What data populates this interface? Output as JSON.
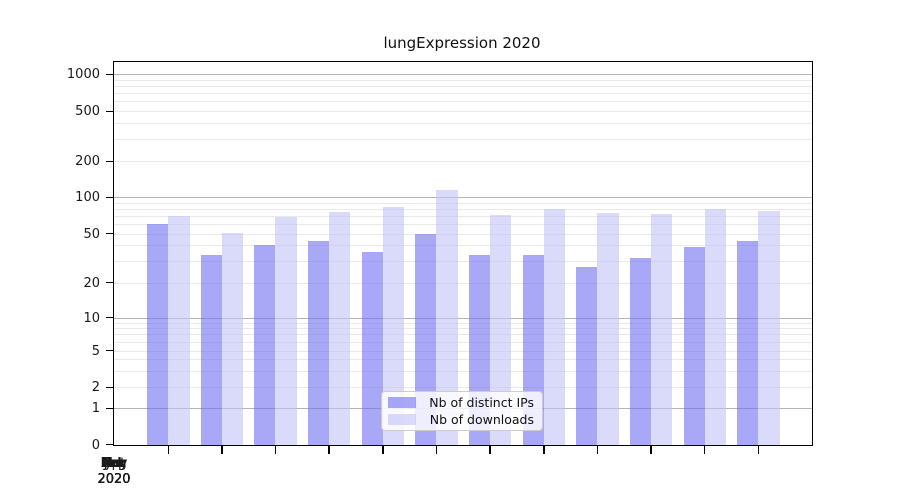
{
  "title": "lungExpression 2020",
  "chart_data": {
    "type": "bar",
    "title": "lungExpression 2020",
    "categories": [
      "Jan 2020",
      "Feb 2020",
      "Mar 2020",
      "Apr 2020",
      "May 2020",
      "Jun 2020",
      "Jul 2020",
      "Aug 2020",
      "Sep 2020",
      "Oct 2020",
      "Nov 2020",
      "Dec 2020"
    ],
    "series": [
      {
        "name": "Nb of distinct IPs",
        "color": "rgba(110,110,240,0.6)",
        "values": [
          60,
          34,
          41,
          44,
          36,
          50,
          34,
          34,
          27,
          32,
          39,
          44
        ]
      },
      {
        "name": "Nb of downloads",
        "color": "rgba(193,193,247,0.6)",
        "values": [
          70,
          51,
          69,
          76,
          83,
          115,
          72,
          80,
          74,
          73,
          80,
          77
        ]
      }
    ],
    "xlabel": "",
    "ylabel": "",
    "y_ticks": [
      0,
      1,
      2,
      5,
      10,
      20,
      50,
      100,
      200,
      500,
      1000
    ],
    "y_scale": "log-like, compressed below 10, linear 0-1",
    "ylim": [
      0,
      1400
    ],
    "grid": "horizontal, major at powers of 10, minor at 2-9 multiples",
    "legend_position": "lower center, inside plot"
  },
  "colors": {
    "major_grid": "#b4b4b4",
    "minor_grid": "#e9e9e9",
    "axis_text": "#1a1a1a",
    "spine": "#000000",
    "legend_border": "#cccccc",
    "legend_background": "rgba(255,255,255,0.8)"
  }
}
